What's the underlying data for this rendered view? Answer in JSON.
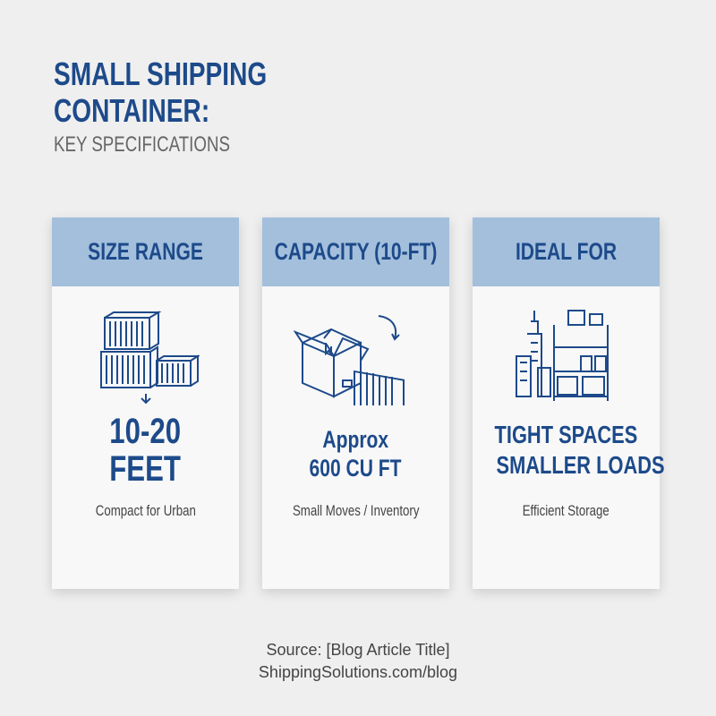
{
  "title": {
    "line1": "SMALL SHIPPING",
    "line2": "CONTAINER:",
    "subtitle": "KEY SPECIFICATIONS"
  },
  "cards": [
    {
      "header": "SIZE RANGE",
      "value_line1": "10-20",
      "value_line2": "FEET",
      "caption": "Compact for Urban",
      "icon": "stacked-containers-icon"
    },
    {
      "header": "CAPACITY (10-FT)",
      "value_line1": "Approx",
      "value_line2": "600 CU FT",
      "caption": "Small Moves / Inventory",
      "icon": "box-to-container-icon"
    },
    {
      "header": "IDEAL FOR",
      "value_line1": "TIGHT SPACES",
      "value_line2": "SMALLER LOADS",
      "caption": "Efficient Storage",
      "icon": "city-warehouse-icon"
    }
  ],
  "source": {
    "line1": "Source: [Blog Article Title]",
    "line2": "ShippingSolutions.com/blog"
  },
  "colors": {
    "primary": "#1d4a8a",
    "header_bg": "#a3bfdc",
    "background": "#efefef"
  }
}
